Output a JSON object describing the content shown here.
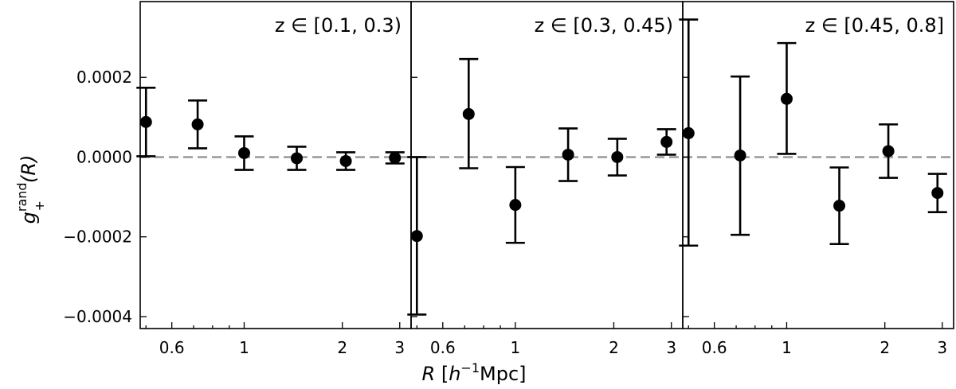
{
  "chart_data": {
    "type": "scatter",
    "xlabel": {
      "var": "R",
      "open": " [",
      "h": "h",
      "exp": "−1",
      "unit": "Mpc]"
    },
    "ylabel": {
      "base": "g",
      "sup": "rand",
      "sub": "+",
      "arg": "(R)"
    },
    "x_scale": "log",
    "xlim": [
      0.48,
      3.25
    ],
    "ylim": [
      -0.00043,
      0.00039
    ],
    "x_ticks": [
      {
        "value": 0.6,
        "label": "0.6"
      },
      {
        "value": 1,
        "label": "1"
      },
      {
        "value": 2,
        "label": "2"
      },
      {
        "value": 3,
        "label": "3"
      }
    ],
    "y_ticks": [
      {
        "value": 0.0002,
        "label": "0.0002"
      },
      {
        "value": 0.0,
        "label": "0.0000"
      },
      {
        "value": -0.0002,
        "label": "−0.0002"
      },
      {
        "value": -0.0004,
        "label": "−0.0004"
      }
    ],
    "reference_line": {
      "y": 0,
      "style": "dashed",
      "color": "#999999"
    },
    "marker_color": "#000000",
    "panels": [
      {
        "label": "z ∈ [0.1, 0.3)",
        "points": [
          {
            "x": 0.5,
            "y": 8.8e-05,
            "err_low": 2e-06,
            "err_high": 0.000174
          },
          {
            "x": 0.72,
            "y": 8.2e-05,
            "err_low": 2.2e-05,
            "err_high": 0.000142
          },
          {
            "x": 1.0,
            "y": 1e-05,
            "err_low": -3.2e-05,
            "err_high": 5.2e-05
          },
          {
            "x": 1.45,
            "y": -3e-06,
            "err_low": -3.2e-05,
            "err_high": 2.6e-05
          },
          {
            "x": 2.05,
            "y": -1e-05,
            "err_low": -3.2e-05,
            "err_high": 1.2e-05
          },
          {
            "x": 2.9,
            "y": -2e-06,
            "err_low": -1.6e-05,
            "err_high": 1.2e-05
          }
        ]
      },
      {
        "label": "z ∈ [0.3, 0.45)",
        "points": [
          {
            "x": 0.5,
            "y": -0.000198,
            "err_low": -0.000395,
            "err_high": 0.0
          },
          {
            "x": 0.72,
            "y": 0.000108,
            "err_low": -2.8e-05,
            "err_high": 0.000246
          },
          {
            "x": 1.0,
            "y": -0.00012,
            "err_low": -0.000215,
            "err_high": -2.5e-05
          },
          {
            "x": 1.45,
            "y": 6e-06,
            "err_low": -6e-05,
            "err_high": 7.2e-05
          },
          {
            "x": 2.05,
            "y": 0.0,
            "err_low": -4.6e-05,
            "err_high": 4.6e-05
          },
          {
            "x": 2.9,
            "y": 3.8e-05,
            "err_low": 6e-06,
            "err_high": 7e-05
          }
        ]
      },
      {
        "label": "z ∈ [0.45, 0.8]",
        "points": [
          {
            "x": 0.5,
            "y": 6e-05,
            "err_low": -0.000222,
            "err_high": 0.000345
          },
          {
            "x": 0.72,
            "y": 4e-06,
            "err_low": -0.000195,
            "err_high": 0.000202
          },
          {
            "x": 1.0,
            "y": 0.000146,
            "err_low": 8e-06,
            "err_high": 0.000286
          },
          {
            "x": 1.45,
            "y": -0.000122,
            "err_low": -0.000218,
            "err_high": -2.6e-05
          },
          {
            "x": 2.05,
            "y": 1.5e-05,
            "err_low": -5.2e-05,
            "err_high": 8.2e-05
          },
          {
            "x": 2.9,
            "y": -9e-05,
            "err_low": -0.000138,
            "err_high": -4.2e-05
          }
        ]
      }
    ]
  }
}
